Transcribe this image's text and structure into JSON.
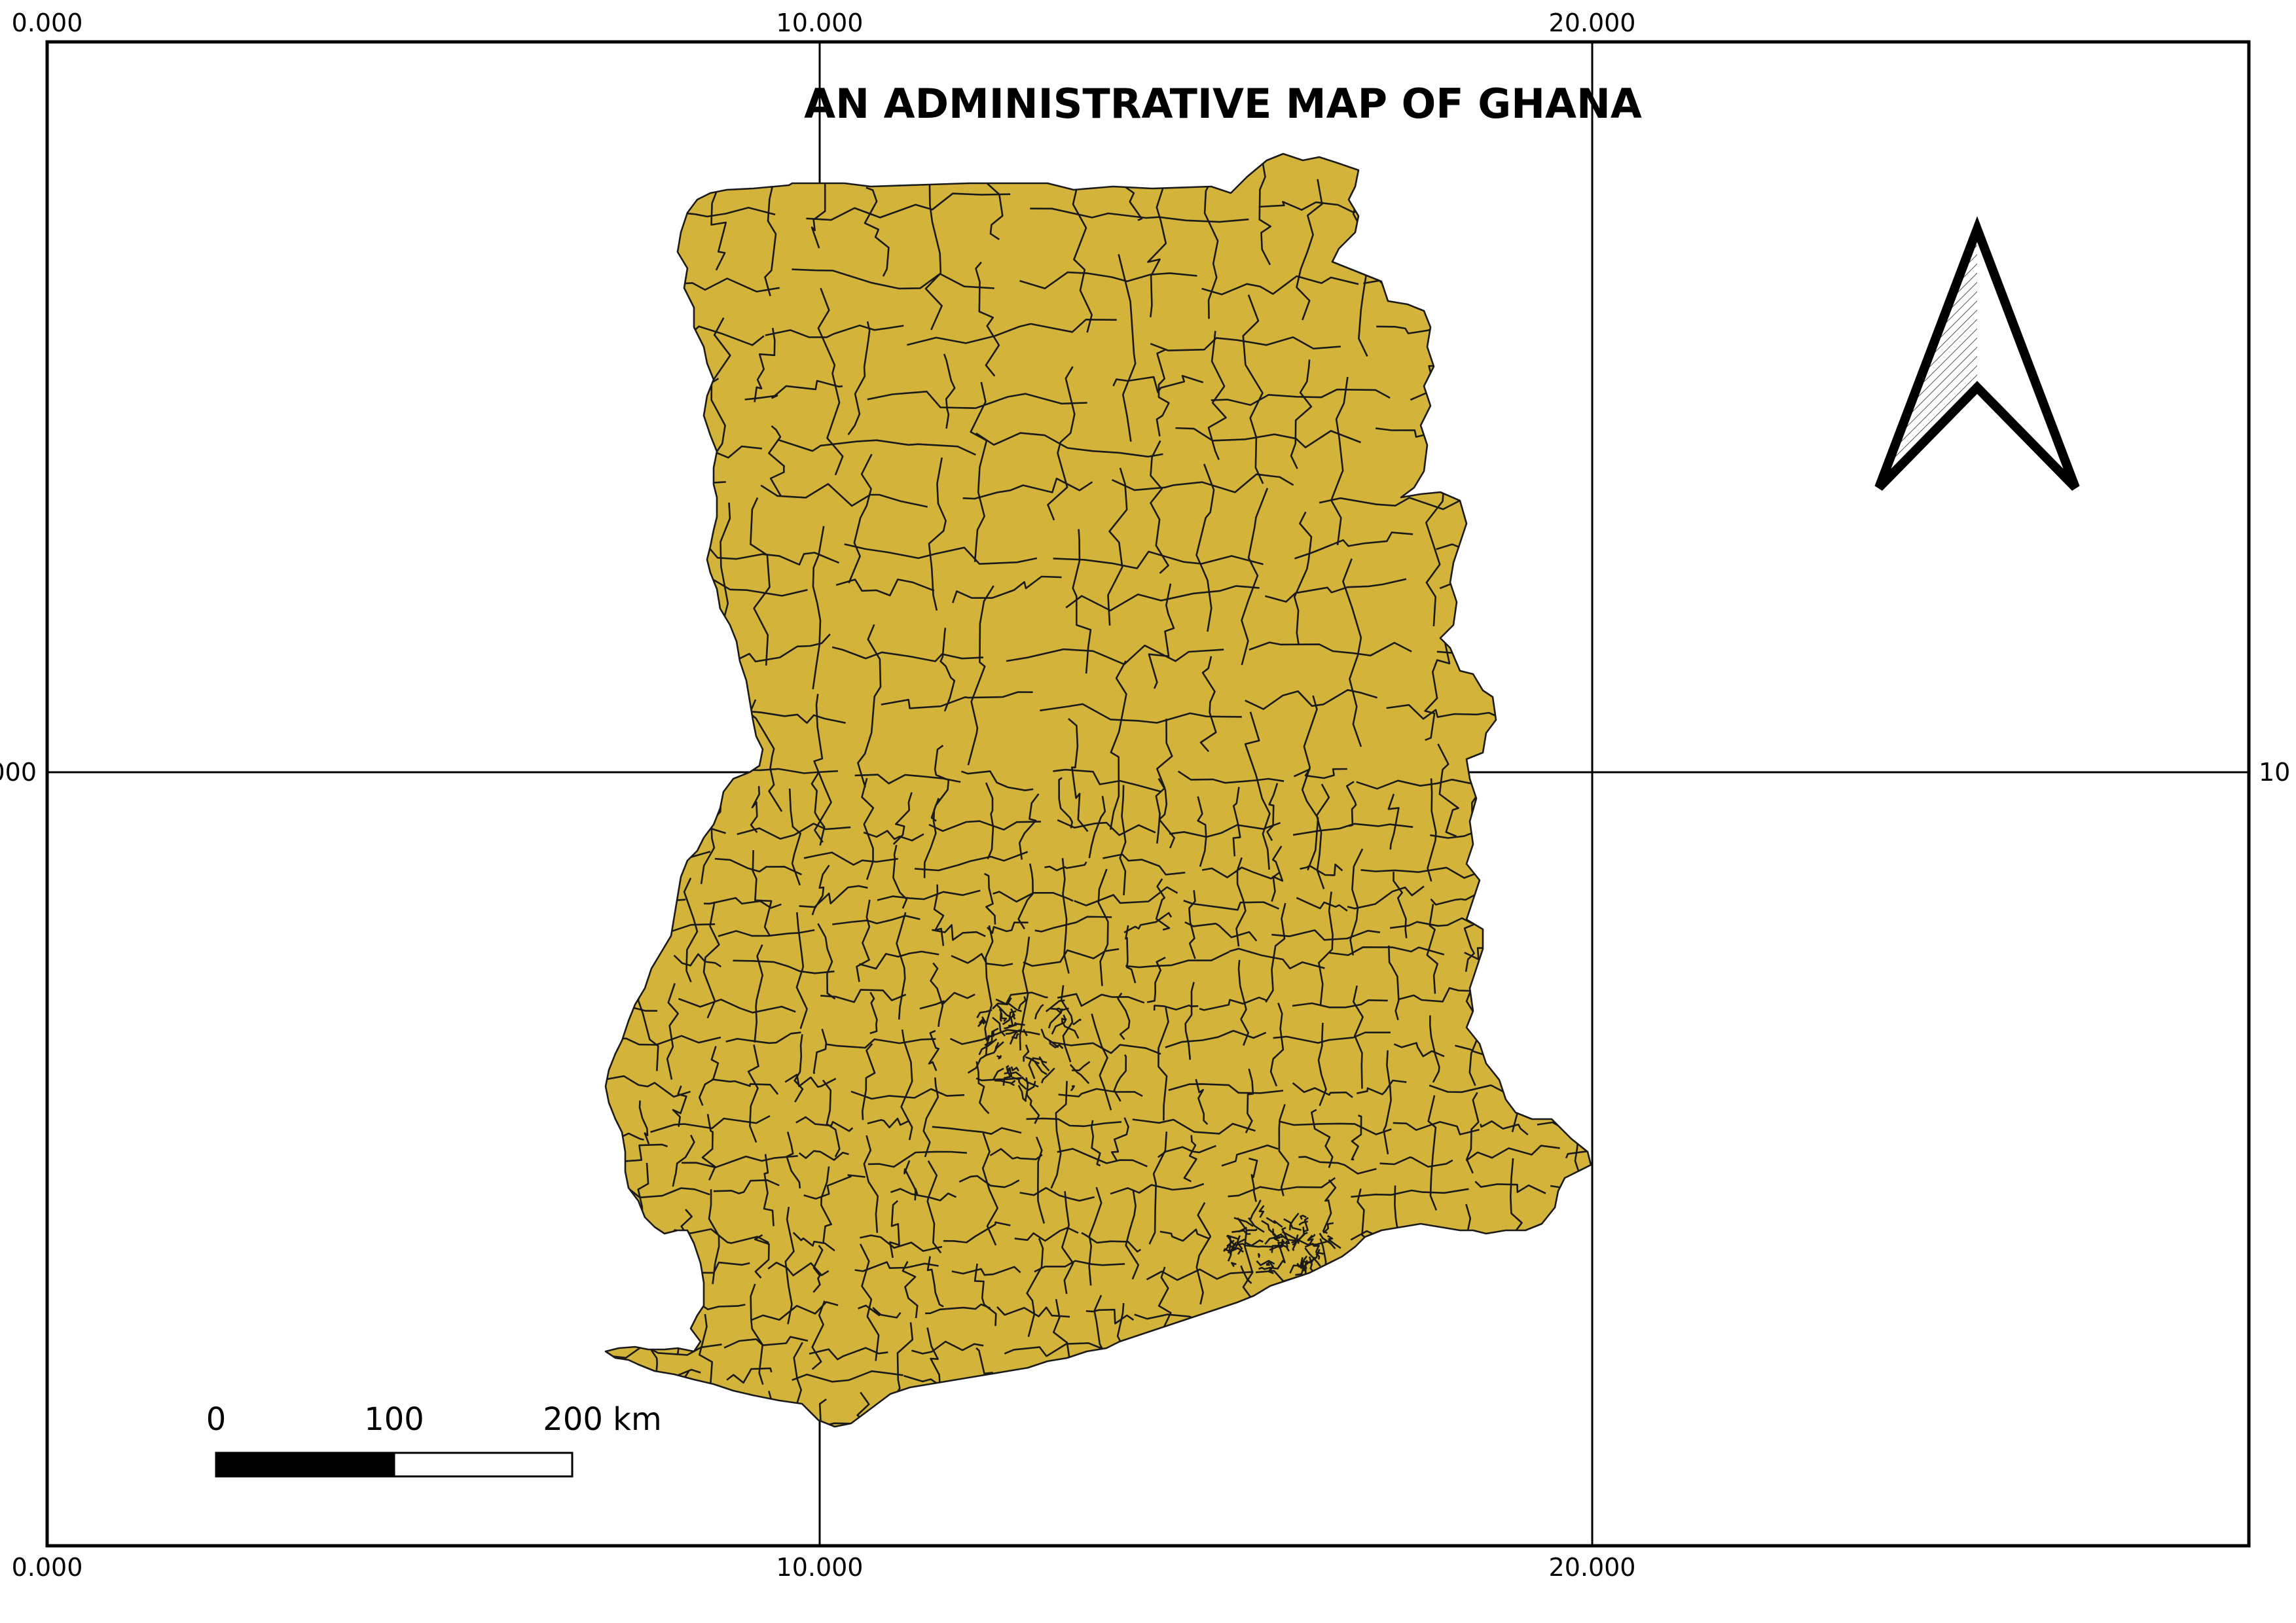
{
  "title": "AN ADMINISTRATIVE MAP OF GHANA",
  "grid": {
    "top_labels": [
      "0.000",
      "10.000",
      "20.000"
    ],
    "bottom_labels": [
      "0.000",
      "10.000",
      "20.000"
    ],
    "left_label": "000",
    "right_label": "10"
  },
  "scale_bar": {
    "labels": [
      "0",
      "100",
      "200 km"
    ]
  },
  "colors": {
    "land_fill": "#d3b33a",
    "boundary": "#1a1a1a",
    "frame": "#000000"
  },
  "north_arrow": {
    "icon": "north-arrow-icon"
  }
}
